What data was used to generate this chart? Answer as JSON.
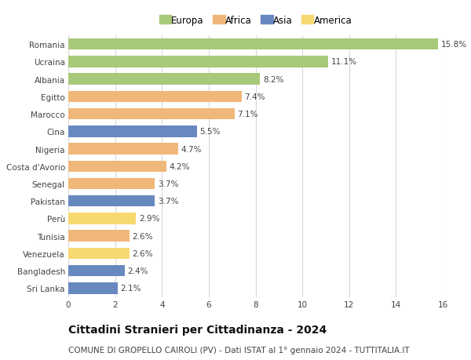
{
  "countries": [
    "Romania",
    "Ucraina",
    "Albania",
    "Egitto",
    "Marocco",
    "Cina",
    "Nigeria",
    "Costa d'Avorio",
    "Senegal",
    "Pakistan",
    "Perù",
    "Tunisia",
    "Venezuela",
    "Bangladesh",
    "Sri Lanka"
  ],
  "values": [
    15.8,
    11.1,
    8.2,
    7.4,
    7.1,
    5.5,
    4.7,
    4.2,
    3.7,
    3.7,
    2.9,
    2.6,
    2.6,
    2.4,
    2.1
  ],
  "continents": [
    "Europa",
    "Europa",
    "Europa",
    "Africa",
    "Africa",
    "Asia",
    "Africa",
    "Africa",
    "Africa",
    "Asia",
    "America",
    "Africa",
    "America",
    "Asia",
    "Asia"
  ],
  "continent_colors": {
    "Europa": "#a8c87a",
    "Africa": "#f0b878",
    "Asia": "#6888c0",
    "America": "#f8d870"
  },
  "legend_order": [
    "Europa",
    "Africa",
    "Asia",
    "America"
  ],
  "title": "Cittadini Stranieri per Cittadinanza - 2024",
  "subtitle": "COMUNE DI GROPELLO CAIROLI (PV) - Dati ISTAT al 1° gennaio 2024 - TUTTITALIA.IT",
  "xlim": [
    0,
    16
  ],
  "xticks": [
    0,
    2,
    4,
    6,
    8,
    10,
    12,
    14,
    16
  ],
  "bar_height": 0.65,
  "background_color": "#ffffff",
  "grid_color": "#d8d8d8",
  "label_fontsize": 7.5,
  "title_fontsize": 10,
  "subtitle_fontsize": 7.5,
  "legend_fontsize": 8.5,
  "tick_fontsize": 7.5
}
